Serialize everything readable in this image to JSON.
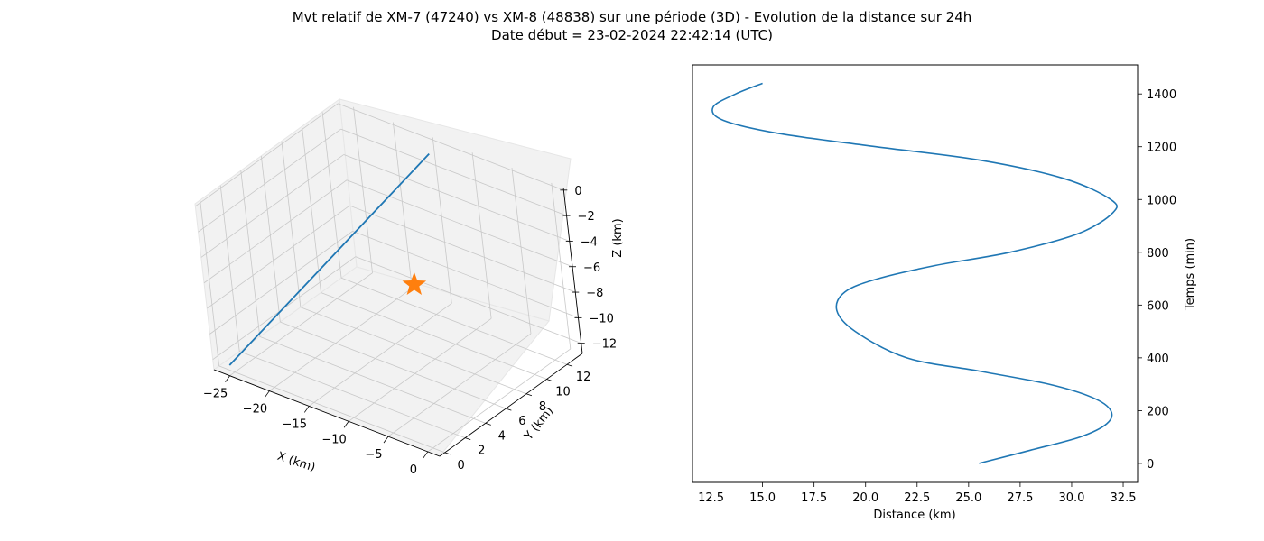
{
  "figure": {
    "title_line1": "Mvt relatif de XM-7 (47240) vs XM-8 (48838) sur une période (3D) - Evolution de la distance sur 24h",
    "title_line2": "Date début = 23-02-2024 22:42:14 (UTC)"
  },
  "colors": {
    "series": "#1f77b4",
    "marker": "#ff7f0e",
    "pane": "#f2f2f2",
    "grid": "#c8c8c8"
  },
  "chart_data": [
    {
      "type": "line3d",
      "xlabel": "X (km)",
      "ylabel": "Y (km)",
      "zlabel": "Z (km)",
      "xticks": [
        -25,
        -20,
        -15,
        -10,
        -5,
        0
      ],
      "yticks": [
        0,
        2,
        4,
        6,
        8,
        10,
        12
      ],
      "zticks": [
        0,
        -2,
        -4,
        -6,
        -8,
        -10,
        -12
      ],
      "xlim": [
        -27,
        1.5
      ],
      "ylim": [
        -0.5,
        13.5
      ],
      "zlim": [
        -12.8,
        0.2
      ],
      "grid": true,
      "series": [
        {
          "points": [
            [
              -25.6,
              0.0,
              -12.4
            ],
            [
              -15.0,
              13.0,
              -0.8
            ]
          ]
        }
      ],
      "markers": [
        {
          "symbol": "star",
          "point": [
            0,
            0,
            0
          ]
        }
      ]
    },
    {
      "type": "line",
      "xlabel": "Distance (km)",
      "ylabel": "Temps (min)",
      "xticks": [
        12.5,
        15.0,
        17.5,
        20.0,
        22.5,
        25.0,
        27.5,
        30.0,
        32.5
      ],
      "yticks": [
        0,
        200,
        400,
        600,
        800,
        1000,
        1200,
        1400
      ],
      "xlim": [
        11.6,
        33.2
      ],
      "ylim": [
        -72,
        1510
      ],
      "y_axis_side": "right",
      "series": [
        {
          "x": [
            25.5,
            28.0,
            30.4,
            31.7,
            31.9,
            31.0,
            28.9,
            25.5,
            22.0,
            19.5,
            18.6,
            19.0,
            20.6,
            23.4,
            27.0,
            30.3,
            32.0,
            31.9,
            29.6,
            25.5,
            20.5,
            15.8,
            13.1,
            12.6,
            13.7,
            15.0
          ],
          "y": [
            0,
            50,
            100,
            150,
            200,
            250,
            300,
            350,
            400,
            500,
            580,
            650,
            700,
            750,
            800,
            870,
            950,
            1000,
            1080,
            1150,
            1200,
            1250,
            1300,
            1350,
            1400,
            1440
          ]
        }
      ]
    }
  ]
}
